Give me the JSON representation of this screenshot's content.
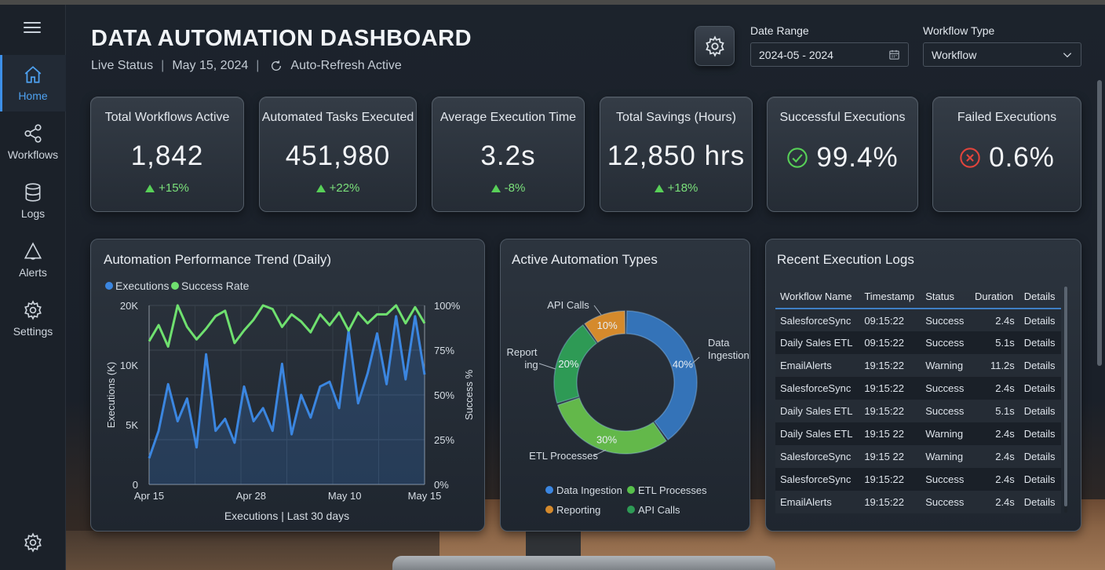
{
  "header": {
    "title": "DATA AUTOMATION DASHBOARD",
    "status": "Live Status",
    "date": "May 15, 2024",
    "refresh": "Auto-Refresh Active"
  },
  "filters": {
    "date_range_label": "Date Range",
    "date_range_value": "2024-05 - 2024",
    "workflow_type_label": "Workflow Type",
    "workflow_type_value": "Workflow"
  },
  "nav": {
    "items": [
      {
        "label": "Home",
        "icon": "home-icon"
      },
      {
        "label": "Workflows",
        "icon": "workflows-icon"
      },
      {
        "label": "Logs",
        "icon": "database-icon"
      },
      {
        "label": "Alerts",
        "icon": "bell-icon"
      },
      {
        "label": "Settings",
        "icon": "gear-icon"
      }
    ]
  },
  "kpis": [
    {
      "label": "Total Workflows Active",
      "value": "1,842",
      "delta": "+15%"
    },
    {
      "label": "Automated Tasks Executed",
      "value": "451,980",
      "delta": "+22%"
    },
    {
      "label": "Average Execution Time",
      "value": "3.2s",
      "delta": "-8%"
    },
    {
      "label": "Total Savings (Hours)",
      "value": "12,850 hrs",
      "delta": "+18%"
    },
    {
      "label": "Successful Executions",
      "value": "99.4%",
      "icon": "check-circle-icon"
    },
    {
      "label": "Failed Executions",
      "value": "0.6%",
      "icon": "x-circle-icon"
    }
  ],
  "colors": {
    "accent": "#3d8fe8",
    "success": "#57cf57",
    "warning": "#e7a14a",
    "danger": "#e0443c",
    "executions": "#3b86e0",
    "success_rate": "#6fe06f"
  },
  "chart_data": [
    {
      "type": "line",
      "title": "Automation Performance Trend (Daily)",
      "xlabel": "Executions | Last 30 days",
      "ylabel": "Executions (K)",
      "y2label": "Success %",
      "legend": [
        "Executions",
        "Success Rate"
      ],
      "x_ticks": [
        "Apr 15",
        "Apr 28",
        "May 10",
        "May 15"
      ],
      "y_ticks": [
        "0",
        "5K",
        "10K",
        "20K"
      ],
      "y2_ticks": [
        "0%",
        "25%",
        "50%",
        "75%",
        "100%"
      ],
      "ylim": [
        0,
        20
      ],
      "y2lim": [
        0,
        100
      ],
      "grid": true,
      "series": [
        {
          "name": "Executions",
          "values": [
            2.2,
            4.5,
            8.4,
            5.3,
            7.2,
            3.1,
            11.8,
            4.5,
            5.5,
            3.5,
            8.2,
            5.3,
            6.4,
            4.5,
            10.2,
            4.2,
            7.5,
            5.6,
            8.2,
            8.6,
            6.4,
            15.8,
            6.8,
            9.3,
            15.3,
            8.4,
            18.2,
            8.8,
            18.2,
            9.2
          ],
          "y_values": [
            2.2,
            4.5,
            8.4,
            5.3,
            7.2,
            3.1,
            11.8,
            4.5,
            5.5,
            3.5,
            8.2,
            5.3,
            6.4,
            4.5,
            10.2,
            4.2,
            7.5,
            5.6,
            8.2,
            8.6,
            6.4,
            15.8,
            6.8,
            9.3,
            15.3,
            8.4,
            18.2,
            8.8,
            18.2,
            9.2
          ]
        },
        {
          "name": "Success Rate",
          "values": [
            80,
            89,
            77,
            100,
            88,
            81,
            87,
            94,
            97,
            79,
            86,
            92,
            100,
            98,
            88,
            95,
            91,
            85,
            95,
            89,
            96,
            86,
            96,
            90,
            95,
            95,
            100,
            90,
            99,
            90
          ],
          "y_values": [
            80,
            89,
            77,
            100,
            88,
            81,
            87,
            94,
            97,
            79,
            86,
            92,
            100,
            98,
            88,
            95,
            91,
            85,
            95,
            89,
            96,
            86,
            96,
            90,
            95,
            95,
            100,
            90,
            99,
            90
          ]
        }
      ]
    },
    {
      "type": "pie",
      "title": "Active Automation Types",
      "categories": [
        "Data Ingestion",
        "ETL Processes",
        "Reporting",
        "API Calls"
      ],
      "labels": [
        "Data Ingestion",
        "ETL Processes",
        "Reporting",
        "API Calls"
      ],
      "values": [
        40,
        30,
        20,
        10
      ],
      "legend": [
        "Data Ingestion",
        "ETL Processes",
        "Reporting",
        "API Calls"
      ]
    }
  ],
  "logs": {
    "title": "Recent Execution Logs",
    "columns": [
      "Workflow Name",
      "Timestamp",
      "Status",
      "Duration",
      "Details"
    ],
    "rows": [
      [
        "SalesforceSync",
        "09:15:22",
        "Success",
        "2.4s",
        "Details"
      ],
      [
        "Daily Sales ETL",
        "09:15:22",
        "Success",
        "5.1s",
        "Details"
      ],
      [
        "EmailAlerts",
        "19:15:22",
        "Warning",
        "11.2s",
        "Details"
      ],
      [
        "SalesforceSync",
        "19:15:22",
        "Success",
        "2.4s",
        "Details"
      ],
      [
        "Daily Sales ETL",
        "19:15:22",
        "Success",
        "5.1s",
        "Details"
      ],
      [
        "Daily Sales ETL",
        "19:15 22",
        "Warning",
        "2.4s",
        "Details"
      ],
      [
        "SalesforceSync",
        "19:15 22",
        "Warning",
        "2.4s",
        "Details"
      ],
      [
        "SalesforceSync",
        "19:15:22",
        "Success",
        "2.4s",
        "Details"
      ],
      [
        "EmailAlerts",
        "19:15:22",
        "Success",
        "2.4s",
        "Details"
      ]
    ]
  }
}
